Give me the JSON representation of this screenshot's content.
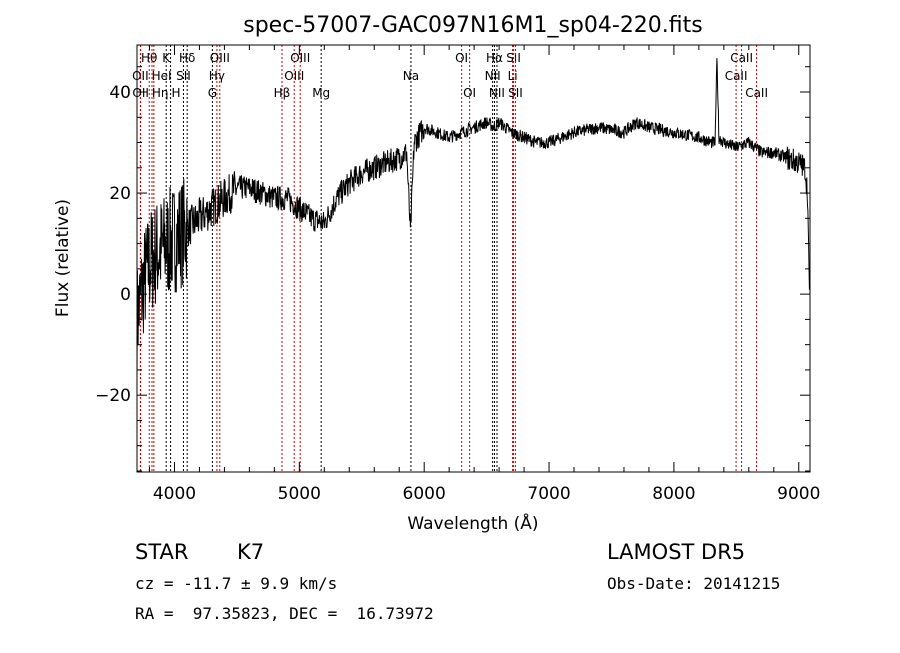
{
  "chart_data": {
    "type": "line",
    "title": "spec-57007-GAC097N16M1_sp04-220.fits",
    "xlabel": "Wavelength (Å)",
    "ylabel": "Flux (relative)",
    "xlim": [
      3700,
      9090
    ],
    "ylim": [
      -35.2,
      49.3
    ],
    "xticks": [
      4000,
      5000,
      6000,
      7000,
      8000,
      9000
    ],
    "yticks": [
      -20,
      0,
      20,
      40
    ],
    "grid": false,
    "series": [
      {
        "name": "flux",
        "x": [
          3700,
          3750,
          3800,
          3850,
          3900,
          3950,
          4000,
          4050,
          4100,
          4200,
          4300,
          4400,
          4500,
          4600,
          4700,
          4800,
          4900,
          5000,
          5100,
          5200,
          5300,
          5400,
          5500,
          5600,
          5700,
          5800,
          5860,
          5890,
          5920,
          6000,
          6100,
          6200,
          6300,
          6400,
          6500,
          6560,
          6600,
          6700,
          6800,
          6900,
          7000,
          7200,
          7400,
          7600,
          7700,
          7800,
          8000,
          8200,
          8300,
          8330,
          8345,
          8360,
          8400,
          8500,
          8600,
          8700,
          8800,
          8900,
          9000,
          9050,
          9070,
          9085
        ],
        "y": [
          -5,
          2,
          6,
          8,
          9,
          10,
          11,
          12,
          13,
          15,
          17,
          19,
          21,
          21,
          20,
          19,
          19,
          17,
          15,
          14,
          19,
          22,
          24,
          25,
          26,
          27,
          28,
          12,
          30,
          33,
          32,
          31,
          32,
          33,
          34,
          33,
          34,
          32,
          31,
          30,
          30,
          32,
          33,
          32,
          34,
          33,
          32,
          31,
          30,
          30,
          47,
          31,
          30,
          29,
          30,
          28,
          28,
          27,
          26,
          25,
          20,
          0
        ]
      }
    ],
    "lines": [
      {
        "name": "OII",
        "wl": 3727,
        "color": "#cc0000",
        "row": 2
      },
      {
        "name": "OII",
        "wl": 3729,
        "color": "#cc0000",
        "row": 3
      },
      {
        "name": "Hθ",
        "wl": 3798,
        "color": "#cc0000",
        "row": 1
      },
      {
        "name": "HeI",
        "wl": 3820,
        "color": "#cc0000",
        "row": 2
      },
      {
        "name": "Hη",
        "wl": 3835,
        "color": "#cc0000",
        "row": 3
      },
      {
        "name": "K",
        "wl": 3934,
        "color": "#000000",
        "row": 1
      },
      {
        "name": "H",
        "wl": 3969,
        "color": "#000000",
        "row": 3
      },
      {
        "name": "SII",
        "wl": 4072,
        "color": "#000000",
        "row": 2
      },
      {
        "name": "Hδ",
        "wl": 4102,
        "color": "#000000",
        "row": 1
      },
      {
        "name": "G",
        "wl": 4304,
        "color": "#000000",
        "row": 3
      },
      {
        "name": "Hγ",
        "wl": 4340,
        "color": "#cc0000",
        "row": 2
      },
      {
        "name": "OIII",
        "wl": 4363,
        "color": "#cc0000",
        "row": 1
      },
      {
        "name": "Hβ",
        "wl": 4861,
        "color": "#cc0000",
        "row": 3
      },
      {
        "name": "OIII",
        "wl": 4959,
        "color": "#cc0000",
        "row": 2
      },
      {
        "name": "OIII",
        "wl": 5007,
        "color": "#cc0000",
        "row": 1
      },
      {
        "name": "Mg",
        "wl": 5175,
        "color": "#000000",
        "row": 3
      },
      {
        "name": "Na",
        "wl": 5894,
        "color": "#000000",
        "row": 2
      },
      {
        "name": "OI",
        "wl": 6300,
        "color": "#cc0000",
        "row": 1
      },
      {
        "name": "OI",
        "wl": 6364,
        "color": "#cc0000",
        "row": 3
      },
      {
        "name": "NII",
        "wl": 6548,
        "color": "#000000",
        "row": 2
      },
      {
        "name": "Hα",
        "wl": 6563,
        "color": "#000000",
        "row": 1
      },
      {
        "name": "NII",
        "wl": 6583,
        "color": "#000000",
        "row": 3
      },
      {
        "name": "Li",
        "wl": 6708,
        "color": "#cc0000",
        "row": 2
      },
      {
        "name": "SII",
        "wl": 6716,
        "color": "#cc0000",
        "row": 1
      },
      {
        "name": "SII",
        "wl": 6731,
        "color": "#cc0000",
        "row": 3
      },
      {
        "name": "CaII",
        "wl": 8498,
        "color": "#cc0000",
        "row": 2
      },
      {
        "name": "CaII",
        "wl": 8542,
        "color": "#cc0000",
        "row": 1
      },
      {
        "name": "CaII",
        "wl": 8662,
        "color": "#cc0000",
        "row": 3
      }
    ]
  },
  "footer": {
    "object_class": "STAR",
    "subclass": "K7",
    "survey": "LAMOST DR5",
    "velocity": "cz = -11.7 ± 9.9 km/s",
    "obs_date": "Obs-Date: 20141215",
    "coords": "RA =  97.35823, DEC =  16.73972"
  }
}
